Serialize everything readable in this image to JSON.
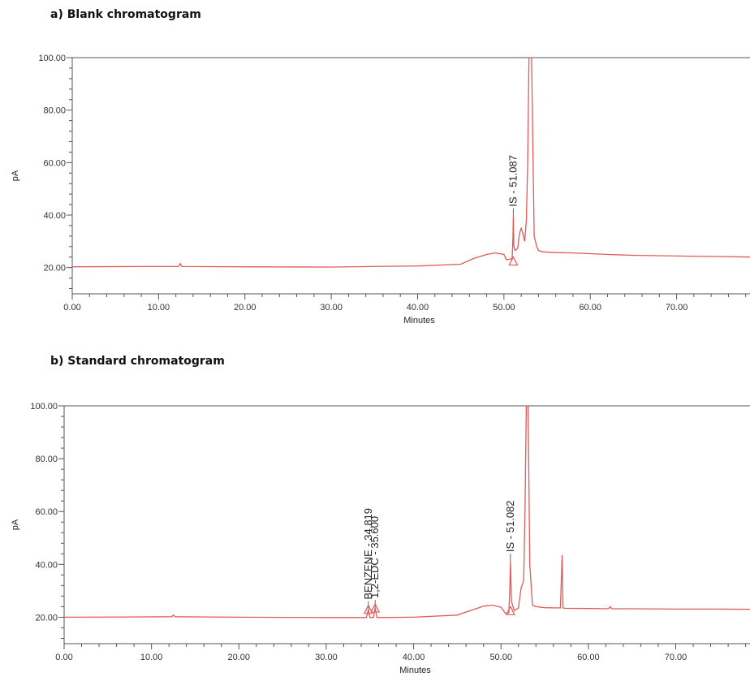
{
  "chart_data": [
    {
      "type": "line",
      "title": "a) Blank chromatogram",
      "xlabel": "Minutes",
      "ylabel": "pA",
      "xlim": [
        0,
        78.5
      ],
      "ylim": [
        10,
        100
      ],
      "x_ticks": [
        "0.00",
        "10.00",
        "20.00",
        "30.00",
        "40.00",
        "50.00",
        "60.00",
        "70.00"
      ],
      "y_ticks": [
        "20.00",
        "40.00",
        "60.00",
        "80.00",
        "100.00"
      ],
      "series": [
        {
          "color": "#e05a5a",
          "x": [
            0,
            7.5,
            12.3,
            12.5,
            12.7,
            20,
            30,
            40,
            45,
            46.5,
            48,
            49,
            50,
            50.3,
            50.7,
            50.95,
            51.05,
            51.087,
            51.15,
            51.3,
            51.6,
            51.8,
            52,
            52.2,
            52.4,
            52.6,
            52.75,
            52.9,
            53.2,
            53.5,
            53.8,
            54,
            54.3,
            54.5,
            56,
            58,
            60,
            62,
            65,
            70,
            75,
            78.5
          ],
          "y": [
            20.3,
            20.4,
            20.4,
            21.5,
            20.4,
            20.3,
            20.2,
            20.6,
            21.3,
            23.5,
            25,
            25.6,
            25,
            23,
            23.2,
            23.5,
            32,
            39.5,
            28,
            26.5,
            27.5,
            33,
            35,
            33,
            30,
            38,
            60,
            100,
            100,
            32,
            28,
            26.5,
            26.2,
            26,
            25.7,
            25.6,
            25.3,
            25,
            24.7,
            24.4,
            24.2,
            24.0
          ]
        }
      ],
      "annotations": [
        {
          "text": "IS - 51.087",
          "x": 51.087
        }
      ]
    },
    {
      "type": "line",
      "title": "b) Standard chromatogram",
      "xlabel": "Minutes",
      "ylabel": "pA",
      "xlim": [
        0,
        78.5
      ],
      "ylim": [
        10,
        100
      ],
      "x_ticks": [
        "0.00",
        "10.00",
        "20.00",
        "30.00",
        "40.00",
        "50.00",
        "60.00",
        "70.00"
      ],
      "y_ticks": [
        "20.00",
        "40.00",
        "60.00",
        "80.00",
        "100.00"
      ],
      "series": [
        {
          "color": "#e05a5a",
          "x": [
            0,
            7.5,
            12.3,
            12.5,
            12.7,
            20,
            30,
            34.6,
            34.82,
            35.0,
            35.4,
            35.6,
            35.8,
            40,
            45,
            46.5,
            48,
            49,
            50,
            50.5,
            50.9,
            51.0,
            51.082,
            51.2,
            51.5,
            52,
            52.3,
            52.6,
            52.75,
            52.9,
            53.1,
            53.3,
            53.6,
            54,
            55,
            56.8,
            57.0,
            57.1,
            57.3,
            60,
            62.3,
            62.5,
            62.7,
            65,
            70,
            75,
            78.5
          ],
          "y": [
            20.0,
            20.1,
            20.2,
            20.8,
            20.2,
            20.0,
            19.9,
            19.9,
            23,
            19.9,
            19.9,
            23.5,
            19.9,
            20.0,
            20.8,
            22.5,
            24.2,
            24.6,
            23.8,
            21.5,
            21.7,
            30,
            41,
            26,
            22.5,
            23.5,
            31,
            34,
            60,
            100,
            100,
            40,
            24.5,
            24,
            23.6,
            23.5,
            43.5,
            23.5,
            23.4,
            23.3,
            23.2,
            24.0,
            23.2,
            23.2,
            23.1,
            23.1,
            23.0
          ]
        }
      ],
      "annotations": [
        {
          "text": "BENZENE - 34.819",
          "x": 34.819
        },
        {
          "text": "1,2-EDC - 35.600",
          "x": 35.6
        },
        {
          "text": "IS - 51.082",
          "x": 51.082
        }
      ]
    }
  ]
}
